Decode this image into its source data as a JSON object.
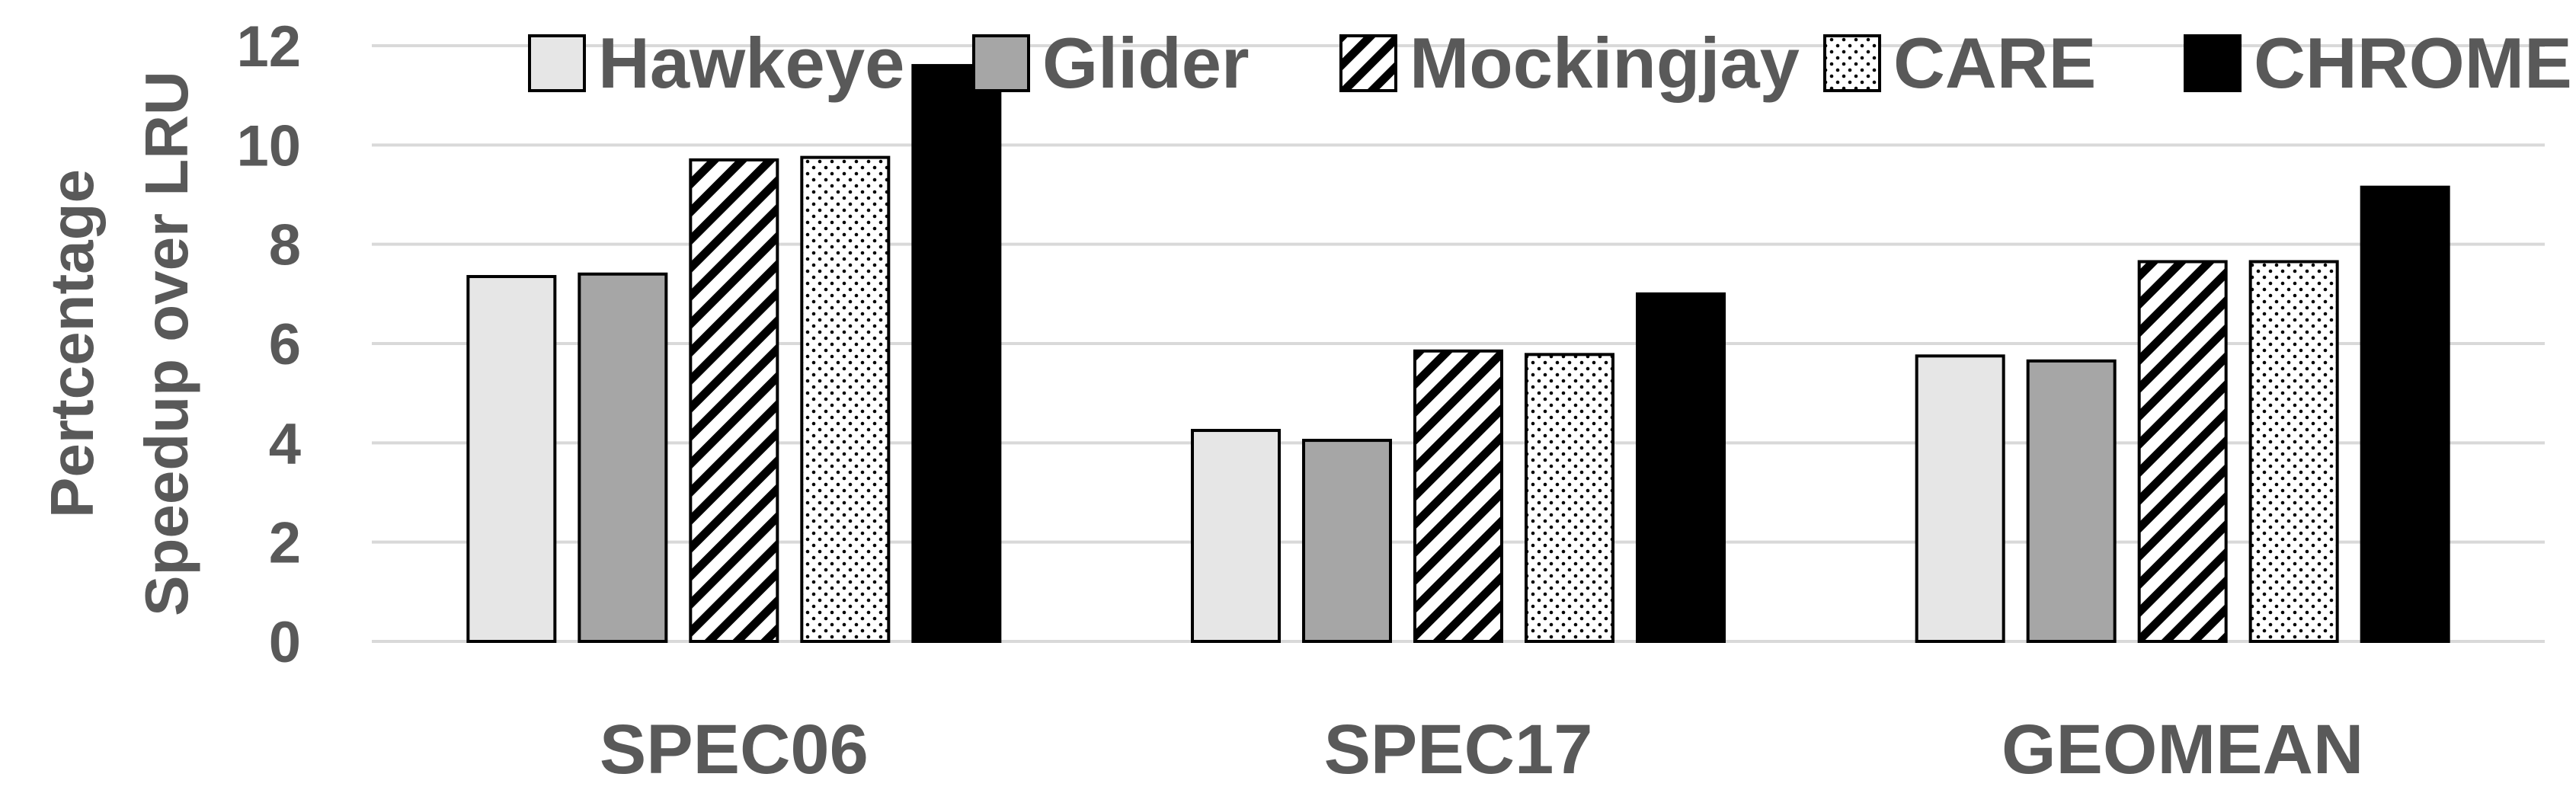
{
  "chart_data": {
    "type": "bar",
    "categories": [
      "SPEC06",
      "SPEC17",
      "GEOMEAN"
    ],
    "series": [
      {
        "name": "Hawkeye",
        "values": [
          7.35,
          4.25,
          5.75
        ],
        "color": "#e6e6e6",
        "pattern": "solid"
      },
      {
        "name": "Glider",
        "values": [
          7.4,
          4.05,
          5.65
        ],
        "color": "#a6a6a6",
        "pattern": "solid"
      },
      {
        "name": "Mockingjay",
        "values": [
          9.7,
          5.85,
          7.65
        ],
        "color": "#ffffff",
        "pattern": "diagonal-stripes"
      },
      {
        "name": "CARE",
        "values": [
          9.75,
          5.78,
          7.65
        ],
        "color": "#ffffff",
        "pattern": "dots"
      },
      {
        "name": "CHROME",
        "values": [
          11.6,
          7.0,
          9.15
        ],
        "color": "#000000",
        "pattern": "solid"
      }
    ],
    "ylabel_lines": [
      "Pertcentage",
      "Speedup over LRU"
    ],
    "xlabel": "",
    "ylim": [
      0,
      12
    ],
    "yticks": [
      0,
      2,
      4,
      6,
      8,
      10,
      12
    ],
    "grid": true,
    "legend_position": "top"
  }
}
